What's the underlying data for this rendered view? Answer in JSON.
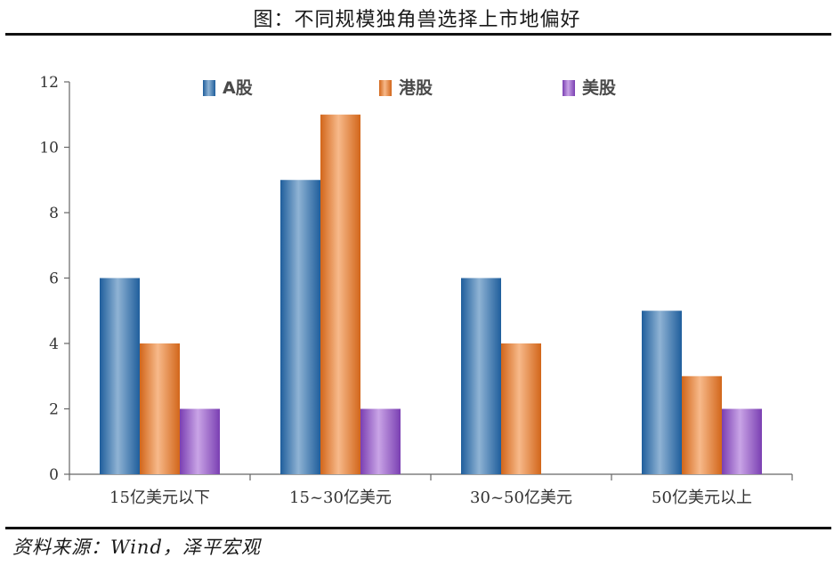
{
  "title": "图：不同规模独角兽选择上市地偏好",
  "source": "资料来源：Wind，泽平宏观",
  "chart_data": {
    "type": "bar",
    "categories": [
      "15亿美元以下",
      "15~30亿美元",
      "30~50亿美元",
      "50亿美元以上"
    ],
    "series": [
      {
        "name": "A股",
        "values": [
          6,
          9,
          6,
          5
        ],
        "color": "#2E75B6"
      },
      {
        "name": "港股",
        "values": [
          4,
          11,
          4,
          3
        ],
        "color": "#ED7D31"
      },
      {
        "name": "美股",
        "values": [
          2,
          2,
          0,
          2
        ],
        "color": "#7030A0"
      }
    ],
    "ylim": [
      0,
      12
    ],
    "yticks": [
      0,
      2,
      4,
      6,
      8,
      10,
      12
    ],
    "legend_position": "top",
    "grid": false
  }
}
